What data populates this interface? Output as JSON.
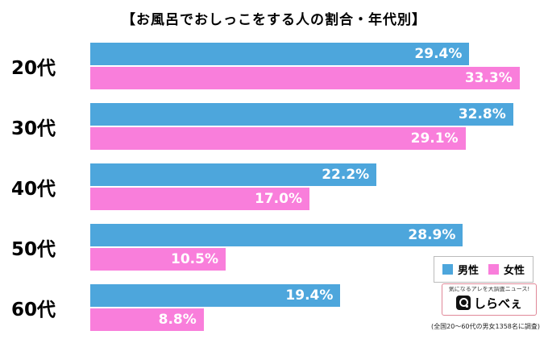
{
  "chart_data": {
    "type": "bar",
    "orientation": "horizontal",
    "title": "【お風呂でおしっこをする人の割合・年代別】",
    "categories": [
      "20代",
      "30代",
      "40代",
      "50代",
      "60代"
    ],
    "series": [
      {
        "name": "男性",
        "color": "#4da6dc",
        "values": [
          29.4,
          32.8,
          22.2,
          28.9,
          19.4
        ]
      },
      {
        "name": "女性",
        "color": "#f97edb",
        "values": [
          33.3,
          29.1,
          17.0,
          10.5,
          8.8
        ]
      }
    ],
    "xlim": [
      0,
      34.5
    ],
    "value_suffix": "%",
    "value_label_color": "#ffffff",
    "grid": false,
    "legend_position": "bottom-right",
    "background": "#ffffff"
  },
  "footer": {
    "logo_tagline": "気になるアレを大調査ニュース!",
    "logo_text": "しらべぇ",
    "note": "(全国20〜60代の男女1358名に調査)"
  }
}
